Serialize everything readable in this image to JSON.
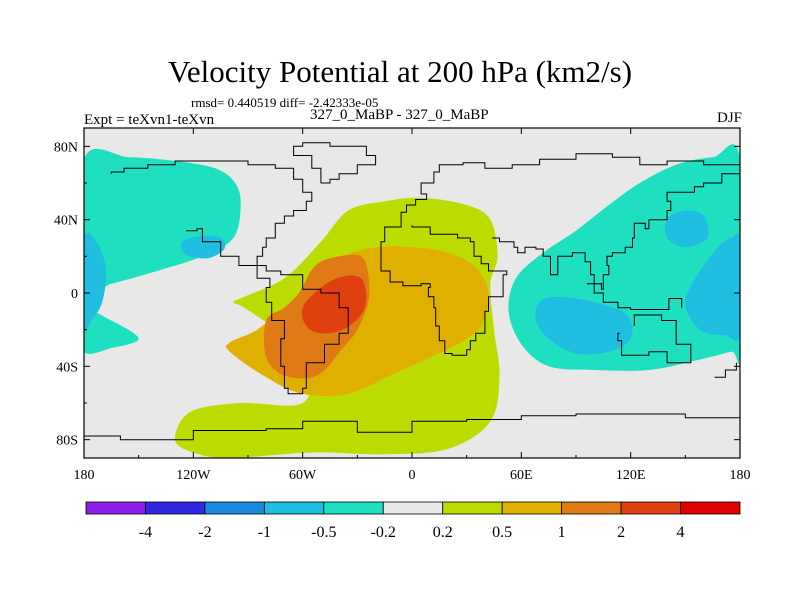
{
  "chart_data": {
    "type": "heatmap",
    "title": "Velocity Potential at 200 hPa (km2/s)",
    "stats": "rmsd= 0.440519 diff= -2.42333e-05",
    "experiment": "Expt = teXvn1-teXvn",
    "cases": "327_0_MaBP - 327_0_MaBP",
    "season": "DJF",
    "xlim": [
      -180,
      180
    ],
    "ylim": [
      -90,
      90
    ],
    "x_ticks": [
      {
        "value": -180,
        "label": "180"
      },
      {
        "value": -120,
        "label": "120W"
      },
      {
        "value": -60,
        "label": "60W"
      },
      {
        "value": 0,
        "label": "0"
      },
      {
        "value": 60,
        "label": "60E"
      },
      {
        "value": 120,
        "label": "120E"
      },
      {
        "value": 180,
        "label": "180"
      }
    ],
    "y_ticks": [
      {
        "value": 80,
        "label": "80N"
      },
      {
        "value": 40,
        "label": "40N"
      },
      {
        "value": 0,
        "label": "0"
      },
      {
        "value": -40,
        "label": "40S"
      },
      {
        "value": -80,
        "label": "80S"
      }
    ],
    "colorbar": {
      "colors": [
        "#8a1ee6",
        "#2e28e0",
        "#1a8ce0",
        "#1fbde0",
        "#1ee0c0",
        "#e8e8e8",
        "#bcdc00",
        "#e0b000",
        "#e07a14",
        "#e04010",
        "#e00000"
      ],
      "labels": [
        "-4",
        "-2",
        "-1",
        "-0.5",
        "-0.2",
        "0.2",
        "0.5",
        "1",
        "2",
        "4"
      ]
    },
    "regions": [
      {
        "level": "-0.2 to -0.5",
        "color": "#1ee0c0",
        "poly": [
          [
            -180,
            73
          ],
          [
            -155,
            74
          ],
          [
            -130,
            72
          ],
          [
            -108,
            68
          ],
          [
            -97,
            60
          ],
          [
            -94,
            48
          ],
          [
            -98,
            30
          ],
          [
            -115,
            20
          ],
          [
            -140,
            12
          ],
          [
            -165,
            5
          ],
          [
            -180,
            2
          ]
        ]
      },
      {
        "level": "-0.2 to -0.5",
        "color": "#1ee0c0",
        "poly": [
          [
            -180,
            -10
          ],
          [
            -165,
            -15
          ],
          [
            -150,
            -25
          ],
          [
            -165,
            -30
          ],
          [
            -180,
            -32
          ]
        ]
      },
      {
        "level": "-0.5 to -1",
        "color": "#1fbde0",
        "poly": [
          [
            -180,
            30
          ],
          [
            -172,
            26
          ],
          [
            -168,
            12
          ],
          [
            -170,
            -5
          ],
          [
            -176,
            -15
          ],
          [
            -180,
            -18
          ]
        ]
      },
      {
        "level": "-0.5 to -1",
        "color": "#1fbde0",
        "poly": [
          [
            -126,
            28
          ],
          [
            -116,
            31
          ],
          [
            -105,
            30
          ],
          [
            -103,
            24
          ],
          [
            -112,
            19
          ],
          [
            -124,
            21
          ]
        ]
      },
      {
        "level": "-0.2 to -0.5",
        "color": "#1ee0c0",
        "poly": [
          [
            180,
            73
          ],
          [
            165,
            74
          ],
          [
            145,
            70
          ],
          [
            125,
            60
          ],
          [
            108,
            48
          ],
          [
            90,
            34
          ],
          [
            72,
            22
          ],
          [
            57,
            8
          ],
          [
            53,
            -10
          ],
          [
            60,
            -28
          ],
          [
            75,
            -40
          ],
          [
            100,
            -42
          ],
          [
            130,
            -42
          ],
          [
            155,
            -37
          ],
          [
            175,
            -32
          ],
          [
            180,
            -31
          ]
        ]
      },
      {
        "level": "-0.5 to -1",
        "color": "#1fbde0",
        "poly": [
          [
            180,
            28
          ],
          [
            175,
            30
          ],
          [
            168,
            25
          ],
          [
            158,
            12
          ],
          [
            150,
            -5
          ],
          [
            158,
            -20
          ],
          [
            172,
            -23
          ],
          [
            180,
            -22
          ]
        ]
      },
      {
        "level": "-0.5 to -1",
        "color": "#1fbde0",
        "poly": [
          [
            140,
            40
          ],
          [
            150,
            45
          ],
          [
            160,
            42
          ],
          [
            162,
            30
          ],
          [
            150,
            25
          ],
          [
            140,
            30
          ]
        ]
      },
      {
        "level": "-0.5 to -1",
        "color": "#1fbde0",
        "poly": [
          [
            70,
            -5
          ],
          [
            80,
            -2
          ],
          [
            100,
            -5
          ],
          [
            118,
            -12
          ],
          [
            120,
            -25
          ],
          [
            108,
            -32
          ],
          [
            90,
            -33
          ],
          [
            75,
            -25
          ],
          [
            68,
            -15
          ]
        ]
      },
      {
        "level": "0.2 to 0.5",
        "color": "#bcdc00",
        "poly": [
          [
            -60,
            -60
          ],
          [
            -57,
            -38
          ],
          [
            -72,
            -22
          ],
          [
            -92,
            -8
          ],
          [
            -98,
            -5
          ],
          [
            -92,
            -2
          ],
          [
            -70,
            8
          ],
          [
            -50,
            28
          ],
          [
            -35,
            45
          ],
          [
            -15,
            50
          ],
          [
            5,
            52
          ],
          [
            30,
            48
          ],
          [
            43,
            40
          ],
          [
            47,
            20
          ],
          [
            43,
            5
          ],
          [
            45,
            -20
          ],
          [
            48,
            -45
          ],
          [
            43,
            -70
          ],
          [
            20,
            -85
          ],
          [
            -15,
            -88
          ],
          [
            -55,
            -87
          ],
          [
            -100,
            -90
          ],
          [
            -120,
            -87
          ],
          [
            -130,
            -80
          ],
          [
            -122,
            -65
          ],
          [
            -95,
            -60
          ]
        ]
      },
      {
        "level": "0.5 to 1",
        "color": "#e0b000",
        "poly": [
          [
            -100,
            -32
          ],
          [
            -100,
            -27
          ],
          [
            -85,
            -20
          ],
          [
            -68,
            -6
          ],
          [
            -50,
            12
          ],
          [
            -38,
            20
          ],
          [
            -20,
            25
          ],
          [
            0,
            25
          ],
          [
            20,
            22
          ],
          [
            35,
            14
          ],
          [
            42,
            0
          ],
          [
            38,
            -18
          ],
          [
            25,
            -28
          ],
          [
            10,
            -35
          ],
          [
            -10,
            -44
          ],
          [
            -35,
            -55
          ],
          [
            -60,
            -55
          ],
          [
            -80,
            -46
          ]
        ]
      },
      {
        "level": "1 to 2",
        "color": "#e07a14",
        "poly": [
          [
            -80,
            -15
          ],
          [
            -70,
            -8
          ],
          [
            -62,
            0
          ],
          [
            -53,
            15
          ],
          [
            -40,
            20
          ],
          [
            -28,
            20
          ],
          [
            -24,
            10
          ],
          [
            -24,
            -5
          ],
          [
            -30,
            -20
          ],
          [
            -38,
            -30
          ],
          [
            -52,
            -45
          ],
          [
            -70,
            -45
          ],
          [
            -80,
            -35
          ]
        ]
      },
      {
        "level": "2 to 4",
        "color": "#e04010",
        "poly": [
          [
            -60,
            -8
          ],
          [
            -50,
            3
          ],
          [
            -38,
            9
          ],
          [
            -28,
            8
          ],
          [
            -25,
            -2
          ],
          [
            -28,
            -12
          ],
          [
            -38,
            -20
          ],
          [
            -50,
            -22
          ],
          [
            -58,
            -18
          ]
        ]
      }
    ],
    "coastline_paths": [
      [
        [
          -124,
          34
        ],
        [
          -118,
          35
        ],
        [
          -115,
          28
        ],
        [
          -105,
          20
        ],
        [
          -95,
          15
        ],
        [
          -85,
          8
        ],
        [
          -78,
          3
        ],
        [
          -80,
          -5
        ],
        [
          -77,
          -15
        ],
        [
          -70,
          -25
        ],
        [
          -72,
          -40
        ],
        [
          -70,
          -52
        ],
        [
          -68,
          -55
        ],
        [
          -60,
          -52
        ],
        [
          -58,
          -38
        ],
        [
          -48,
          -28
        ],
        [
          -40,
          -22
        ],
        [
          -35,
          -8
        ],
        [
          -40,
          0
        ],
        [
          -50,
          2
        ],
        [
          -60,
          10
        ],
        [
          -72,
          12
        ],
        [
          -80,
          15
        ],
        [
          -85,
          20
        ],
        [
          -82,
          25
        ],
        [
          -80,
          30
        ],
        [
          -75,
          38
        ],
        [
          -70,
          42
        ],
        [
          -65,
          45
        ],
        [
          -58,
          50
        ],
        [
          -55,
          55
        ],
        [
          -60,
          62
        ],
        [
          -65,
          68
        ],
        [
          -75,
          70
        ],
        [
          -90,
          72
        ],
        [
          -110,
          72
        ],
        [
          -130,
          70
        ],
        [
          -145,
          68
        ],
        [
          -158,
          66
        ],
        [
          -165,
          65
        ]
      ],
      [
        [
          -10,
          36
        ],
        [
          -6,
          44
        ],
        [
          -3,
          48
        ],
        [
          2,
          51
        ],
        [
          8,
          54
        ],
        [
          5,
          60
        ],
        [
          12,
          66
        ],
        [
          15,
          70
        ],
        [
          28,
          71
        ],
        [
          40,
          68
        ],
        [
          55,
          70
        ],
        [
          70,
          73
        ],
        [
          90,
          76
        ],
        [
          110,
          74
        ],
        [
          125,
          70
        ],
        [
          140,
          72
        ],
        [
          160,
          70
        ],
        [
          180,
          68
        ]
      ],
      [
        [
          -10,
          36
        ],
        [
          -15,
          28
        ],
        [
          -17,
          20
        ],
        [
          -17,
          12
        ],
        [
          -12,
          6
        ],
        [
          -5,
          4
        ],
        [
          5,
          5
        ],
        [
          10,
          3
        ],
        [
          9,
          -2
        ],
        [
          12,
          -8
        ],
        [
          13,
          -18
        ],
        [
          15,
          -26
        ],
        [
          18,
          -33
        ],
        [
          22,
          -34
        ],
        [
          30,
          -31
        ],
        [
          32,
          -26
        ],
        [
          35,
          -22
        ],
        [
          40,
          -15
        ],
        [
          40,
          -10
        ],
        [
          42,
          -2
        ],
        [
          50,
          10
        ],
        [
          52,
          12
        ],
        [
          44,
          12
        ],
        [
          42,
          16
        ],
        [
          38,
          20
        ],
        [
          34,
          28
        ],
        [
          32,
          30
        ],
        [
          25,
          32
        ],
        [
          10,
          36
        ],
        [
          0,
          37
        ]
      ],
      [
        [
          44,
          30
        ],
        [
          48,
          28
        ],
        [
          56,
          25
        ],
        [
          58,
          22
        ],
        [
          62,
          25
        ],
        [
          68,
          24
        ],
        [
          72,
          20
        ],
        [
          76,
          10
        ],
        [
          80,
          12
        ],
        [
          80,
          20
        ],
        [
          88,
          22
        ],
        [
          92,
          22
        ],
        [
          95,
          17
        ],
        [
          98,
          10
        ],
        [
          100,
          5
        ],
        [
          104,
          2
        ],
        [
          105,
          10
        ],
        [
          108,
          15
        ],
        [
          107,
          20
        ],
        [
          110,
          22
        ],
        [
          117,
          25
        ],
        [
          121,
          30
        ],
        [
          122,
          38
        ],
        [
          128,
          35
        ],
        [
          130,
          40
        ],
        [
          140,
          45
        ],
        [
          142,
          50
        ],
        [
          140,
          55
        ],
        [
          155,
          58
        ],
        [
          160,
          60
        ],
        [
          170,
          65
        ],
        [
          180,
          65
        ]
      ],
      [
        [
          96,
          5
        ],
        [
          100,
          0
        ],
        [
          105,
          -5
        ],
        [
          113,
          -8
        ],
        [
          120,
          -9
        ],
        [
          130,
          -9
        ],
        [
          141,
          -3
        ],
        [
          148,
          -8
        ]
      ],
      [
        [
          114,
          -22
        ],
        [
          113,
          -26
        ],
        [
          115,
          -34
        ],
        [
          130,
          -32
        ],
        [
          140,
          -38
        ],
        [
          148,
          -38
        ],
        [
          153,
          -28
        ],
        [
          145,
          -15
        ],
        [
          137,
          -12
        ],
        [
          130,
          -12
        ],
        [
          122,
          -18
        ]
      ],
      [
        [
          -180,
          -78
        ],
        [
          -160,
          -80
        ],
        [
          -120,
          -75
        ],
        [
          -80,
          -74
        ],
        [
          -60,
          -70
        ],
        [
          -30,
          -76
        ],
        [
          0,
          -70
        ],
        [
          30,
          -69
        ],
        [
          60,
          -67
        ],
        [
          90,
          -66
        ],
        [
          120,
          -66
        ],
        [
          150,
          -68
        ],
        [
          180,
          -78
        ]
      ],
      [
        [
          166,
          -46
        ],
        [
          172,
          -42
        ],
        [
          178,
          -38
        ]
      ],
      [
        [
          -50,
          60
        ],
        [
          -45,
          62
        ],
        [
          -40,
          65
        ],
        [
          -30,
          70
        ],
        [
          -20,
          75
        ],
        [
          -25,
          80
        ],
        [
          -45,
          82
        ],
        [
          -60,
          80
        ],
        [
          -65,
          75
        ],
        [
          -55,
          68
        ],
        [
          -50,
          60
        ]
      ]
    ]
  }
}
